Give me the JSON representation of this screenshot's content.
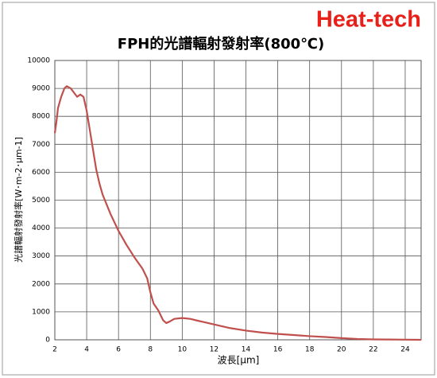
{
  "brand": "Heat-tech",
  "chart_data": {
    "type": "line",
    "title": "FPH的光譜輻射發射率(800℃)",
    "x_label": "波長[μm]",
    "y_label": "光譜輻射發射率[W･m-2･μm-1]",
    "x": [
      2.0,
      2.1,
      2.2,
      2.4,
      2.6,
      2.75,
      3.0,
      3.2,
      3.4,
      3.6,
      3.8,
      4.0,
      4.2,
      4.4,
      4.6,
      4.8,
      5.0,
      5.5,
      6.0,
      6.5,
      7.0,
      7.5,
      7.8,
      8.0,
      8.2,
      8.5,
      8.8,
      9.0,
      9.2,
      9.5,
      10.0,
      10.5,
      11.0,
      12.0,
      13.0,
      14.0,
      15.0,
      16.0,
      17.0,
      18.0,
      19.0,
      20.0,
      21.0,
      22.0,
      23.0,
      24.0,
      25.0
    ],
    "series": [
      {
        "name": "FPH",
        "color": "#c0504d",
        "values": [
          7400,
          7800,
          8300,
          8700,
          9000,
          9080,
          9000,
          8850,
          8700,
          8780,
          8700,
          8200,
          7500,
          6800,
          6100,
          5600,
          5200,
          4500,
          3900,
          3400,
          2950,
          2550,
          2200,
          1700,
          1300,
          1050,
          700,
          600,
          650,
          750,
          780,
          750,
          680,
          550,
          420,
          330,
          260,
          210,
          170,
          130,
          100,
          60,
          30,
          15,
          10,
          5,
          0
        ]
      }
    ],
    "xlim": [
      2,
      25
    ],
    "xticks": [
      2,
      4,
      6,
      8,
      10,
      12,
      14,
      16,
      18,
      20,
      22,
      24
    ],
    "ylim": [
      0,
      10000
    ],
    "yticks": [
      0,
      1000,
      2000,
      3000,
      4000,
      5000,
      6000,
      7000,
      8000,
      9000,
      10000
    ],
    "grid": true
  }
}
